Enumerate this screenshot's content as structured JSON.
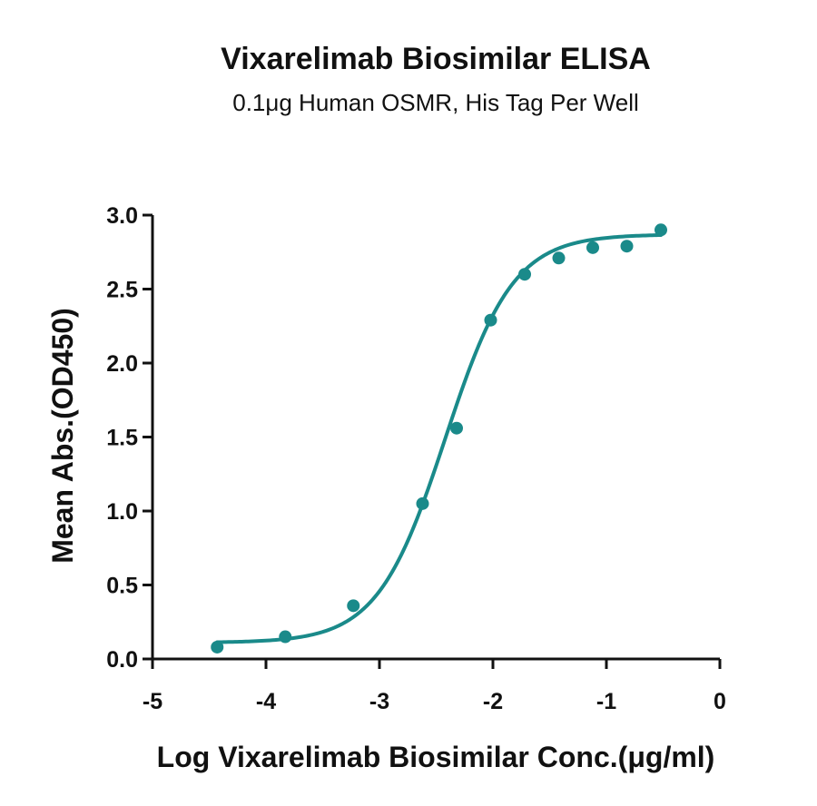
{
  "chart_data": {
    "type": "scatter",
    "title": "Vixarelimab Biosimilar ELISA",
    "subtitle": "0.1μg Human OSMR, His Tag Per Well",
    "xlabel": "Log Vixarelimab Biosimilar Conc.(μg/ml)",
    "ylabel": "Mean Abs.(OD450)",
    "xlim": [
      -5,
      0
    ],
    "ylim": [
      0,
      3.0
    ],
    "xticks": [
      -5,
      -4,
      -3,
      -2,
      -1,
      0
    ],
    "xtick_labels": [
      "-5",
      "-4",
      "-3",
      "-2",
      "-1",
      "0"
    ],
    "yticks": [
      0,
      0.5,
      1.0,
      1.5,
      2.0,
      2.5,
      3.0
    ],
    "ytick_labels": [
      "0.0",
      "0.5",
      "1.0",
      "1.5",
      "2.0",
      "2.5",
      "3.0"
    ],
    "grid": false,
    "series_color": "#1a8a8a",
    "points": [
      {
        "x": -4.43,
        "y": 0.08
      },
      {
        "x": -3.83,
        "y": 0.15
      },
      {
        "x": -3.23,
        "y": 0.36
      },
      {
        "x": -2.62,
        "y": 1.05
      },
      {
        "x": -2.32,
        "y": 1.56
      },
      {
        "x": -2.02,
        "y": 2.29
      },
      {
        "x": -1.72,
        "y": 2.6
      },
      {
        "x": -1.42,
        "y": 2.71
      },
      {
        "x": -1.12,
        "y": 2.78
      },
      {
        "x": -0.82,
        "y": 2.79
      },
      {
        "x": -0.52,
        "y": 2.9
      }
    ],
    "fit": {
      "model": "4PL",
      "bottom": 0.11,
      "top": 2.87,
      "log_ec50": -2.42,
      "hill": 1.45,
      "x_range": [
        -4.43,
        -0.52
      ]
    }
  }
}
